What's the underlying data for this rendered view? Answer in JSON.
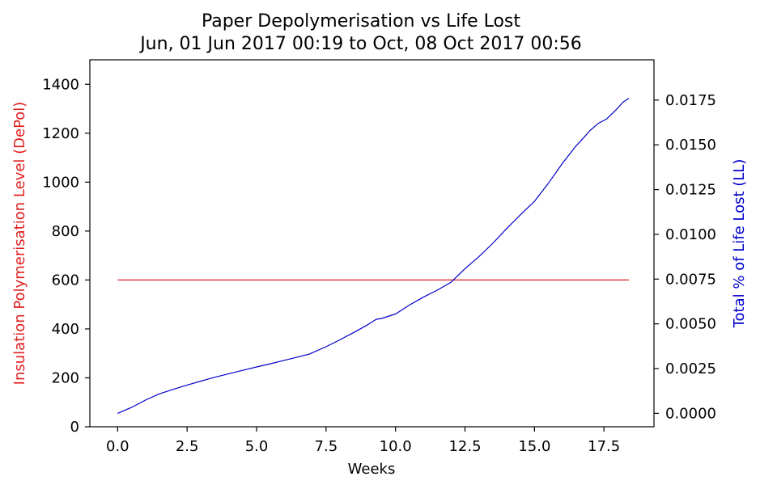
{
  "chart_data": {
    "type": "line",
    "title": "Paper Depolymerisation vs Life Lost",
    "subtitle": "Jun, 01 Jun 2017 00:19 to Oct, 08 Oct 2017 00:56",
    "xlabel": "Weeks",
    "ylabel_left": "Insulation Polymerisation Level (DePol)",
    "ylabel_right": "Total % of Life Lost (LL)",
    "xlim": [
      -1.0,
      19.3
    ],
    "ylim_left": [
      0,
      1500
    ],
    "ylim_right": [
      -0.00075,
      0.01975
    ],
    "xticks": [
      0.0,
      2.5,
      5.0,
      7.5,
      10.0,
      12.5,
      15.0,
      17.5
    ],
    "xtick_labels": [
      "0.0",
      "2.5",
      "5.0",
      "7.5",
      "10.0",
      "12.5",
      "15.0",
      "17.5"
    ],
    "yticks_left": [
      0,
      200,
      400,
      600,
      800,
      1000,
      1200,
      1400
    ],
    "ytick_labels_left": [
      "0",
      "200",
      "400",
      "600",
      "800",
      "1000",
      "1200",
      "1400"
    ],
    "yticks_right": [
      0.0,
      0.0025,
      0.005,
      0.0075,
      0.01,
      0.0125,
      0.015,
      0.0175
    ],
    "ytick_labels_right": [
      "0.0000",
      "0.0025",
      "0.0050",
      "0.0075",
      "0.0100",
      "0.0125",
      "0.0150",
      "0.0175"
    ],
    "grid": false,
    "colors": {
      "left_axis": "#e02020",
      "right_axis": "#0000cc"
    },
    "series": [
      {
        "axis": "left",
        "color": "#e02020",
        "x": [
          0.0,
          18.4
        ],
        "values": [
          600,
          600
        ]
      },
      {
        "axis": "right",
        "color": "#0000cc",
        "x": [
          0.0,
          0.5,
          1.0,
          1.5,
          2.0,
          2.5,
          3.0,
          3.5,
          4.0,
          4.5,
          5.0,
          5.5,
          6.0,
          6.5,
          6.9,
          7.5,
          8.0,
          8.5,
          9.0,
          9.3,
          9.5,
          10.0,
          10.5,
          11.0,
          11.5,
          12.0,
          12.5,
          13.0,
          13.5,
          14.0,
          14.5,
          15.0,
          15.5,
          16.0,
          16.5,
          16.8,
          17.0,
          17.3,
          17.6,
          17.9,
          18.2,
          18.4
        ],
        "values": [
          0.0,
          0.00033,
          0.00074,
          0.00109,
          0.00134,
          0.00158,
          0.0018,
          0.00202,
          0.00221,
          0.0024,
          0.00259,
          0.00277,
          0.00296,
          0.00315,
          0.00331,
          0.00372,
          0.00411,
          0.00452,
          0.00495,
          0.00525,
          0.0053,
          0.00555,
          0.00605,
          0.00649,
          0.00688,
          0.00733,
          0.00808,
          0.00875,
          0.0095,
          0.01032,
          0.0111,
          0.01185,
          0.01285,
          0.01395,
          0.01495,
          0.01545,
          0.0158,
          0.0162,
          0.01645,
          0.0169,
          0.0174,
          0.0176
        ]
      }
    ]
  }
}
